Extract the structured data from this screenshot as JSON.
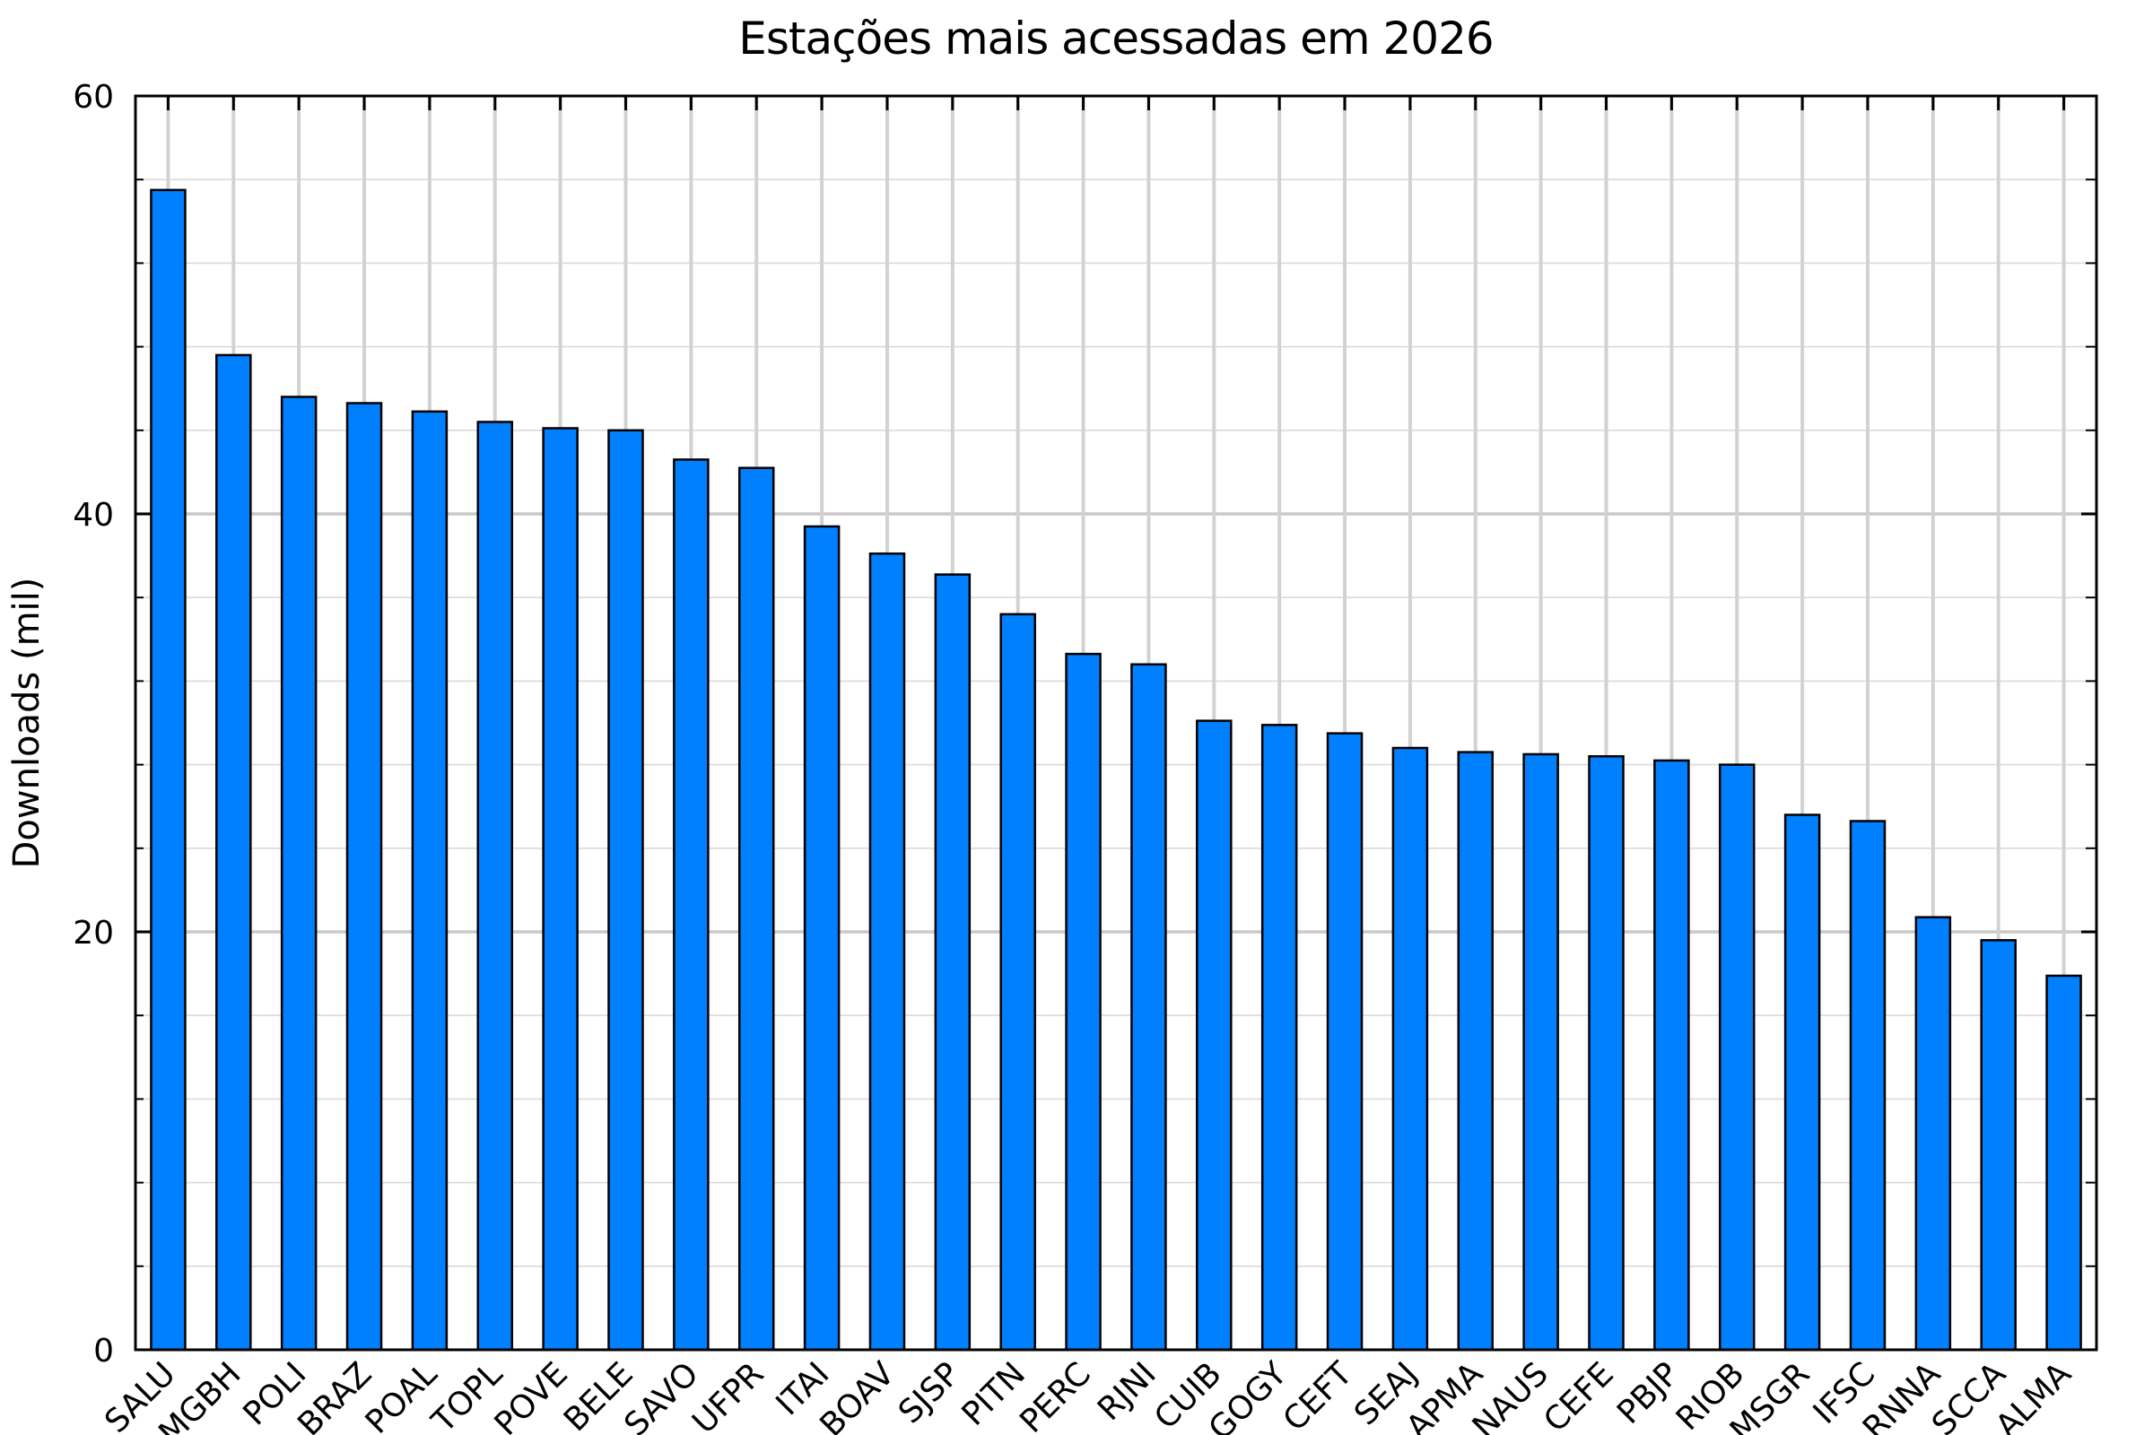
{
  "chart_data": {
    "type": "bar",
    "title": "Estações mais acessadas em 2026",
    "xlabel": "",
    "ylabel": "Downloads (mil)",
    "categories": [
      "SALU",
      "MGBH",
      "POLI",
      "BRAZ",
      "POAL",
      "TOPL",
      "POVE",
      "BELE",
      "SAVO",
      "UFPR",
      "ITAI",
      "BOAV",
      "SJSP",
      "PITN",
      "PERC",
      "RJNI",
      "CUIB",
      "GOGY",
      "CEFT",
      "SEAJ",
      "APMA",
      "NAUS",
      "CEFE",
      "PBJP",
      "RIOB",
      "MSGR",
      "IFSC",
      "RNNA",
      "SCCA",
      "ALMA"
    ],
    "values": [
      55.5,
      47.6,
      45.6,
      45.3,
      44.9,
      44.4,
      44.1,
      44.0,
      42.6,
      42.2,
      39.4,
      38.1,
      37.1,
      35.2,
      33.3,
      32.8,
      30.1,
      29.9,
      29.5,
      28.8,
      28.6,
      28.5,
      28.4,
      28.2,
      28.0,
      25.6,
      25.3,
      20.7,
      19.6,
      17.9
    ],
    "ylim": [
      0,
      60
    ],
    "yticks_major": [
      0,
      20,
      40,
      60
    ],
    "ytick_minor_step": 4,
    "xtick_label_rotation_deg": 45,
    "grid": "on",
    "legend": "none",
    "bar_color": "#0080FF",
    "bar_edge_color": "#000000",
    "grid_major_color": "#c9c9c9",
    "grid_minor_color": "#dadada",
    "grid_vertical_color": "#d2d2d2",
    "axis_color": "#000000",
    "text_color": "#000000",
    "background_color": "#ffffff"
  }
}
